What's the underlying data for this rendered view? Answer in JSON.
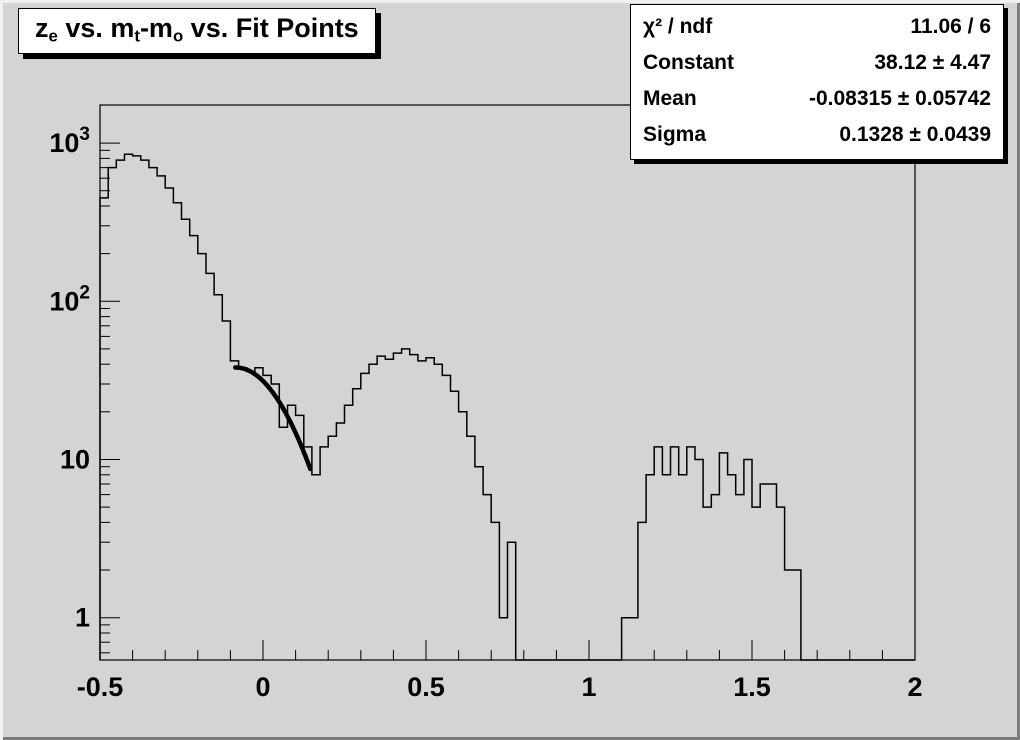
{
  "window": {
    "background": "#d4d4d4",
    "box_fill": "#ffffff",
    "line_color": "#000000"
  },
  "title": {
    "text": "z_e vs. m_t-m_o vs. Fit Points",
    "segments": [
      {
        "text": "z"
      },
      {
        "text": "e",
        "sub": true
      },
      {
        "text": " vs. m"
      },
      {
        "text": "t",
        "sub": true
      },
      {
        "text": "-m"
      },
      {
        "text": "o",
        "sub": true
      },
      {
        "text": " vs. Fit Points"
      }
    ]
  },
  "stats": {
    "rows": [
      {
        "label": "χ² / ndf",
        "value": "11.06 / 6"
      },
      {
        "label": "Constant",
        "value": "38.12 ± 4.47"
      },
      {
        "label": "Mean",
        "value": "-0.08315 ± 0.05742"
      },
      {
        "label": "Sigma",
        "value": "0.1328 ± 0.0439"
      }
    ]
  },
  "chart_data": {
    "type": "histogram-step",
    "title": "z_e vs. m_t-m_o vs. Fit Points",
    "x_range": [
      -0.5,
      2
    ],
    "y_scale": "log",
    "y_range": [
      0.54,
      1740
    ],
    "grid": false,
    "legend_position": "none",
    "line_color": "#000000",
    "bin_start": -0.5,
    "bin_width": 0.025,
    "bin_counts": [
      450,
      700,
      780,
      850,
      830,
      780,
      700,
      620,
      520,
      420,
      330,
      260,
      200,
      150,
      110,
      75,
      42,
      38,
      36,
      38,
      34,
      30,
      16,
      22,
      19,
      12,
      8,
      12,
      14,
      17,
      22,
      28,
      35,
      40,
      45,
      43,
      47,
      50,
      46,
      42,
      44,
      40,
      34,
      27,
      20,
      14,
      9,
      6,
      4,
      1,
      3,
      0,
      0,
      0,
      0,
      0,
      0,
      0,
      0,
      0,
      0,
      0,
      0,
      0,
      1,
      1,
      4,
      8,
      12,
      8,
      12,
      8,
      12,
      10,
      5,
      6,
      11,
      8,
      6,
      10,
      5,
      7,
      7,
      5,
      2,
      2,
      0,
      0,
      0,
      0,
      0,
      0,
      0,
      0,
      0,
      0,
      0,
      0,
      0,
      0
    ],
    "fit": {
      "type": "gaussian",
      "constant": 38.12,
      "mean": -0.08315,
      "sigma": 0.1328,
      "draw_range": [
        -0.085,
        0.145
      ],
      "color": "#000000",
      "line_width": 4.5
    },
    "x_ticks": {
      "values": [
        -0.5,
        0,
        0.5,
        1,
        1.5,
        2
      ],
      "labels": [
        "-0.5",
        "0",
        "0.5",
        "1",
        "1.5",
        "2"
      ],
      "minor_step": 0.1
    },
    "y_ticks": {
      "values": [
        1,
        10,
        100,
        1000
      ],
      "labels": [
        {
          "base": "1",
          "exp": ""
        },
        {
          "base": "10",
          "exp": ""
        },
        {
          "base": "10",
          "exp": "2"
        },
        {
          "base": "10",
          "exp": "3"
        }
      ]
    }
  }
}
